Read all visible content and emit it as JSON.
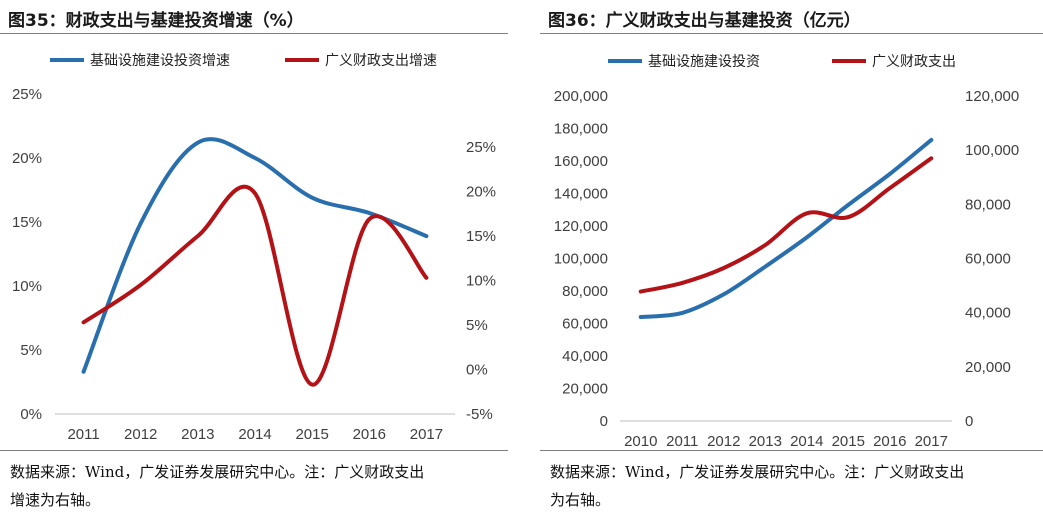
{
  "colors": {
    "blue": "#2a6fad",
    "red": "#b31217",
    "rule": "#7f7f7f",
    "axis": "#bfbfbf"
  },
  "chart_data": [
    {
      "type": "line",
      "title": "图35：财政支出与基建投资增速（%）",
      "x": [
        "2011",
        "2012",
        "2013",
        "2014",
        "2015",
        "2016",
        "2017"
      ],
      "yticks_left": [
        "25%",
        "20%",
        "15%",
        "10%",
        "5%",
        "0%"
      ],
      "yticks_right": [
        "25%",
        "20%",
        "15%",
        "10%",
        "5%",
        "0%",
        "-5%"
      ],
      "ylim_left": [
        0,
        25
      ],
      "ylim_right": [
        -5,
        25
      ],
      "series": [
        {
          "name": "基础设施建设投资增速",
          "axis": "left",
          "color": "#2a6fad",
          "values": [
            3.3,
            14.9,
            21.2,
            20.0,
            16.9,
            15.7,
            13.9
          ]
        },
        {
          "name": "广义财政支出增速",
          "axis": "right",
          "color": "#b31217",
          "values": [
            5.3,
            9.5,
            15.0,
            19.8,
            -1.7,
            16.9,
            10.3
          ]
        }
      ],
      "source": [
        "数据来源：Wind，广发证券发展研究中心。注：广义财政支出",
        "增速为右轴。"
      ]
    },
    {
      "type": "line",
      "title": "图36：广义财政支出与基建投资（亿元）",
      "x": [
        "2010",
        "2011",
        "2012",
        "2013",
        "2014",
        "2015",
        "2016",
        "2017"
      ],
      "yticks_left": [
        "200,000",
        "180,000",
        "160,000",
        "140,000",
        "120,000",
        "100,000",
        "80,000",
        "60,000",
        "40,000",
        "20,000",
        "0"
      ],
      "yticks_right": [
        "120,000",
        "100,000",
        "80,000",
        "60,000",
        "40,000",
        "20,000",
        "0"
      ],
      "ylim_left": [
        0,
        200000
      ],
      "ylim_right": [
        0,
        120000
      ],
      "series": [
        {
          "name": "基础设施建设投资",
          "axis": "left",
          "color": "#2a6fad",
          "values": [
            64000,
            66500,
            78000,
            95000,
            113000,
            133000,
            152000,
            173000
          ]
        },
        {
          "name": "广义财政支出",
          "axis": "right",
          "color": "#b31217",
          "values": [
            47800,
            51000,
            56500,
            65000,
            76700,
            75300,
            86000,
            97000
          ]
        }
      ],
      "source": [
        "数据来源：Wind，广发证券发展研究中心。注：广义财政支出",
        "为右轴。"
      ]
    }
  ]
}
